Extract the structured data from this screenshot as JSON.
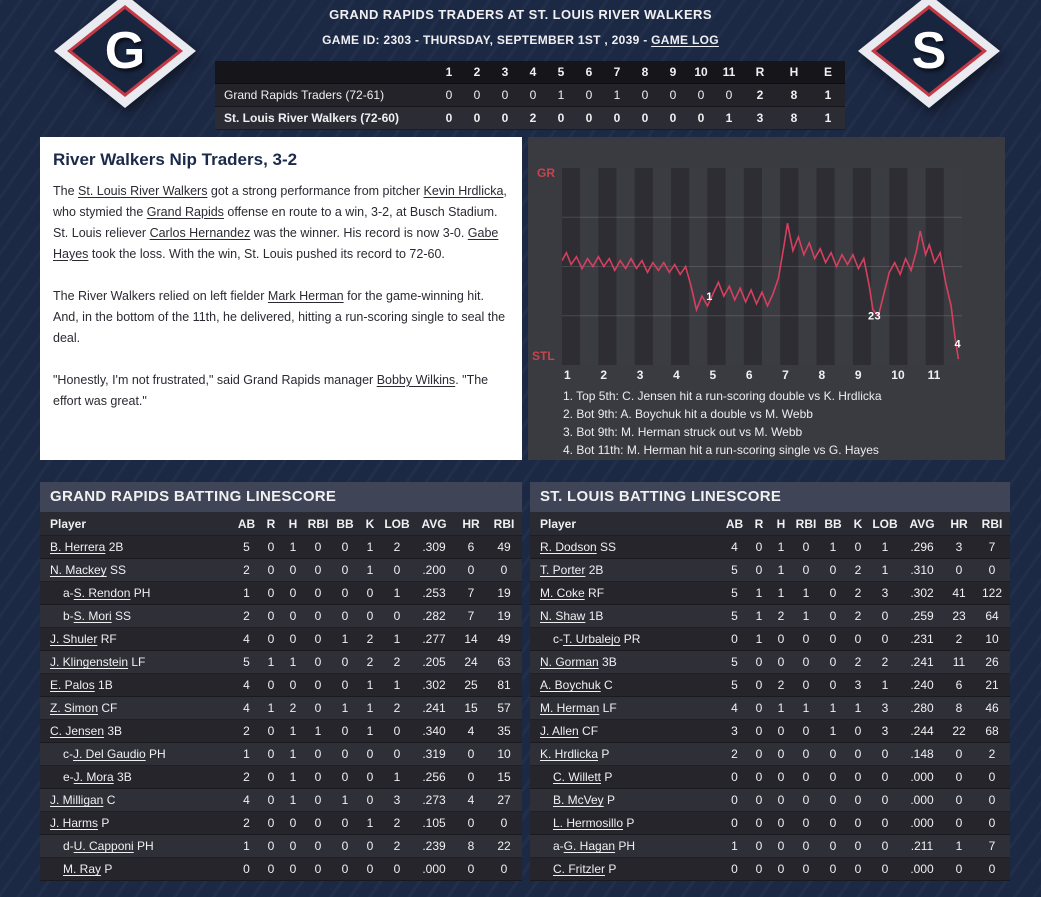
{
  "colors": {
    "page_bg": "#1c2945",
    "panel_bg": "#3a3a41",
    "accent_red": "#c4454e",
    "chart_line": "#d6405f",
    "logo_navy": "#18253f",
    "logo_red": "#c23a46"
  },
  "header": {
    "title": "GRAND RAPIDS TRADERS AT ST. LOUIS RIVER WALKERS",
    "subtitle_prefix": "GAME ID: 2303 - THURSDAY, SEPTEMBER 1ST , 2039 - ",
    "game_log_label": "GAME LOG",
    "away_logo_letter": "G",
    "home_logo_letter": "S"
  },
  "linescore": {
    "innings": [
      "1",
      "2",
      "3",
      "4",
      "5",
      "6",
      "7",
      "8",
      "9",
      "10",
      "11"
    ],
    "rhe_headers": [
      "R",
      "H",
      "E"
    ],
    "rows": [
      {
        "team": "Grand Rapids Traders (72-61)",
        "innings": [
          "0",
          "0",
          "0",
          "0",
          "1",
          "0",
          "1",
          "0",
          "0",
          "0",
          "0"
        ],
        "r": "2",
        "h": "8",
        "e": "1"
      },
      {
        "team": "St. Louis River Walkers (72-60)",
        "innings": [
          "0",
          "0",
          "0",
          "2",
          "0",
          "0",
          "0",
          "0",
          "0",
          "0",
          "1"
        ],
        "r": "3",
        "h": "8",
        "e": "1"
      }
    ]
  },
  "recap": {
    "headline": "River Walkers Nip Traders, 3-2",
    "paragraphs": [
      [
        {
          "t": "The "
        },
        {
          "t": "St. Louis River Walkers",
          "link": true
        },
        {
          "t": " got a strong performance from pitcher "
        },
        {
          "t": "Kevin Hrdlicka",
          "link": true
        },
        {
          "t": ", who stymied the "
        },
        {
          "t": "Grand Rapids",
          "link": true
        },
        {
          "t": " offense en route to a win, 3-2, at Busch Stadium. St. Louis reliever "
        },
        {
          "t": "Carlos Hernandez",
          "link": true
        },
        {
          "t": " was the winner. His record is now 3-0. "
        },
        {
          "t": "Gabe Hayes",
          "link": true
        },
        {
          "t": " took the loss. With the win, St. Louis pushed its record to 72-60."
        }
      ],
      [
        {
          "t": "The River Walkers relied on left fielder "
        },
        {
          "t": "Mark Herman",
          "link": true
        },
        {
          "t": " for the game-winning hit. And, in the bottom of the 11th, he delivered, hitting a run-scoring single to seal the deal."
        }
      ],
      [
        {
          "t": "\"Honestly, I'm not frustrated,\" said Grand Rapids manager "
        },
        {
          "t": "Bobby Wilkins",
          "link": true
        },
        {
          "t": ". \"The effort was great.\""
        }
      ]
    ]
  },
  "chart_data": {
    "type": "line",
    "y_top_label": "GR",
    "y_bottom_label": "STL",
    "x_axis": "inning",
    "y_axis": "win probability % (top = GR, bottom = STL)",
    "ylim": [
      0,
      100
    ],
    "x_ticks": [
      "1",
      "2",
      "3",
      "4",
      "5",
      "6",
      "7",
      "8",
      "9",
      "10",
      "11"
    ],
    "points": [
      [
        1.0,
        53
      ],
      [
        1.12,
        57
      ],
      [
        1.25,
        51
      ],
      [
        1.4,
        55
      ],
      [
        1.55,
        49
      ],
      [
        1.7,
        54
      ],
      [
        1.85,
        50
      ],
      [
        2.0,
        55
      ],
      [
        2.15,
        50
      ],
      [
        2.3,
        54
      ],
      [
        2.45,
        48
      ],
      [
        2.6,
        53
      ],
      [
        2.75,
        49
      ],
      [
        2.9,
        54
      ],
      [
        3.05,
        49
      ],
      [
        3.2,
        53
      ],
      [
        3.35,
        47
      ],
      [
        3.5,
        52
      ],
      [
        3.65,
        48
      ],
      [
        3.8,
        52
      ],
      [
        3.95,
        47
      ],
      [
        4.1,
        51
      ],
      [
        4.25,
        46
      ],
      [
        4.4,
        50
      ],
      [
        4.55,
        40
      ],
      [
        4.7,
        28
      ],
      [
        4.85,
        35
      ],
      [
        5.0,
        30
      ],
      [
        5.15,
        36
      ],
      [
        5.3,
        42
      ],
      [
        5.45,
        35
      ],
      [
        5.6,
        40
      ],
      [
        5.75,
        33
      ],
      [
        5.9,
        39
      ],
      [
        6.05,
        32
      ],
      [
        6.2,
        38
      ],
      [
        6.35,
        31
      ],
      [
        6.5,
        37
      ],
      [
        6.65,
        30
      ],
      [
        6.8,
        36
      ],
      [
        6.95,
        44
      ],
      [
        7.1,
        60
      ],
      [
        7.2,
        72
      ],
      [
        7.35,
        58
      ],
      [
        7.5,
        65
      ],
      [
        7.65,
        56
      ],
      [
        7.8,
        62
      ],
      [
        7.95,
        54
      ],
      [
        8.1,
        59
      ],
      [
        8.25,
        52
      ],
      [
        8.4,
        57
      ],
      [
        8.55,
        50
      ],
      [
        8.7,
        56
      ],
      [
        8.85,
        51
      ],
      [
        9.0,
        56
      ],
      [
        9.15,
        49
      ],
      [
        9.3,
        54
      ],
      [
        9.45,
        40
      ],
      [
        9.55,
        28
      ],
      [
        9.7,
        25
      ],
      [
        9.85,
        36
      ],
      [
        10.0,
        47
      ],
      [
        10.15,
        52
      ],
      [
        10.3,
        46
      ],
      [
        10.45,
        54
      ],
      [
        10.6,
        48
      ],
      [
        10.75,
        58
      ],
      [
        10.85,
        68
      ],
      [
        11.0,
        56
      ],
      [
        11.1,
        61
      ],
      [
        11.25,
        52
      ],
      [
        11.4,
        57
      ],
      [
        11.55,
        42
      ],
      [
        11.7,
        30
      ],
      [
        11.8,
        15
      ],
      [
        11.9,
        3
      ]
    ],
    "markers": [
      {
        "label": "1",
        "x": 5.05,
        "pct": 33
      },
      {
        "label": "2",
        "x": 9.5,
        "pct": 23
      },
      {
        "label": "3",
        "x": 9.68,
        "pct": 23
      },
      {
        "label": "4",
        "x": 11.88,
        "pct": 9
      }
    ],
    "key_plays": [
      "1. Top 5th: C. Jensen hit a run-scoring double vs K. Hrdlicka",
      "2. Bot 9th: A. Boychuk hit a double vs M. Webb",
      "3. Bot 9th: M. Herman struck out vs M. Webb",
      "4. Bot 11th: M. Herman hit a run-scoring single vs G. Hayes"
    ]
  },
  "boxscores": [
    {
      "title": "GRAND RAPIDS BATTING LINESCORE",
      "columns": [
        "Player",
        "AB",
        "R",
        "H",
        "RBI",
        "BB",
        "K",
        "LOB",
        "AVG",
        "HR",
        "RBI"
      ],
      "rows": [
        {
          "prefix": "",
          "name": "B. Herrera",
          "pos": "2B",
          "sub": false,
          "stats": [
            "5",
            "0",
            "1",
            "0",
            "0",
            "1",
            "2",
            ".309",
            "6",
            "49"
          ]
        },
        {
          "prefix": "",
          "name": "N. Mackey",
          "pos": "SS",
          "sub": false,
          "stats": [
            "2",
            "0",
            "0",
            "0",
            "0",
            "1",
            "0",
            ".200",
            "0",
            "0"
          ]
        },
        {
          "prefix": "a-",
          "name": "S. Rendon",
          "pos": "PH",
          "sub": true,
          "stats": [
            "1",
            "0",
            "0",
            "0",
            "0",
            "0",
            "1",
            ".253",
            "7",
            "19"
          ]
        },
        {
          "prefix": "b-",
          "name": "S. Mori",
          "pos": "SS",
          "sub": true,
          "stats": [
            "2",
            "0",
            "0",
            "0",
            "0",
            "0",
            "0",
            ".282",
            "7",
            "19"
          ]
        },
        {
          "prefix": "",
          "name": "J. Shuler",
          "pos": "RF",
          "sub": false,
          "stats": [
            "4",
            "0",
            "0",
            "0",
            "1",
            "2",
            "1",
            ".277",
            "14",
            "49"
          ]
        },
        {
          "prefix": "",
          "name": "J. Klingenstein",
          "pos": "LF",
          "sub": false,
          "stats": [
            "5",
            "1",
            "1",
            "0",
            "0",
            "2",
            "2",
            ".205",
            "24",
            "63"
          ]
        },
        {
          "prefix": "",
          "name": "E. Palos",
          "pos": "1B",
          "sub": false,
          "stats": [
            "4",
            "0",
            "0",
            "0",
            "0",
            "1",
            "1",
            ".302",
            "25",
            "81"
          ]
        },
        {
          "prefix": "",
          "name": "Z. Simon",
          "pos": "CF",
          "sub": false,
          "stats": [
            "4",
            "1",
            "2",
            "0",
            "1",
            "1",
            "2",
            ".241",
            "15",
            "57"
          ]
        },
        {
          "prefix": "",
          "name": "C. Jensen",
          "pos": "3B",
          "sub": false,
          "stats": [
            "2",
            "0",
            "1",
            "1",
            "0",
            "1",
            "0",
            ".340",
            "4",
            "35"
          ]
        },
        {
          "prefix": "c-",
          "name": "J. Del Gaudio",
          "pos": "PH",
          "sub": true,
          "stats": [
            "1",
            "0",
            "1",
            "0",
            "0",
            "0",
            "0",
            ".319",
            "0",
            "10"
          ]
        },
        {
          "prefix": "e-",
          "name": "J. Mora",
          "pos": "3B",
          "sub": true,
          "stats": [
            "2",
            "0",
            "1",
            "0",
            "0",
            "0",
            "1",
            ".256",
            "0",
            "15"
          ]
        },
        {
          "prefix": "",
          "name": "J. Milligan",
          "pos": "C",
          "sub": false,
          "stats": [
            "4",
            "0",
            "1",
            "0",
            "1",
            "0",
            "3",
            ".273",
            "4",
            "27"
          ]
        },
        {
          "prefix": "",
          "name": "J. Harms",
          "pos": "P",
          "sub": false,
          "stats": [
            "2",
            "0",
            "0",
            "0",
            "0",
            "1",
            "2",
            ".105",
            "0",
            "0"
          ]
        },
        {
          "prefix": "d-",
          "name": "U. Capponi",
          "pos": "PH",
          "sub": true,
          "stats": [
            "1",
            "0",
            "0",
            "0",
            "0",
            "0",
            "2",
            ".239",
            "8",
            "22"
          ]
        },
        {
          "prefix": "",
          "name": "M. Ray",
          "pos": "P",
          "sub": true,
          "stats": [
            "0",
            "0",
            "0",
            "0",
            "0",
            "0",
            "0",
            ".000",
            "0",
            "0"
          ]
        }
      ]
    },
    {
      "title": "ST. LOUIS BATTING LINESCORE",
      "columns": [
        "Player",
        "AB",
        "R",
        "H",
        "RBI",
        "BB",
        "K",
        "LOB",
        "AVG",
        "HR",
        "RBI"
      ],
      "rows": [
        {
          "prefix": "",
          "name": "R. Dodson",
          "pos": "SS",
          "sub": false,
          "stats": [
            "4",
            "0",
            "1",
            "0",
            "1",
            "0",
            "1",
            ".296",
            "3",
            "7"
          ]
        },
        {
          "prefix": "",
          "name": "T. Porter",
          "pos": "2B",
          "sub": false,
          "stats": [
            "5",
            "0",
            "1",
            "0",
            "0",
            "2",
            "1",
            ".310",
            "0",
            "0"
          ]
        },
        {
          "prefix": "",
          "name": "M. Coke",
          "pos": "RF",
          "sub": false,
          "stats": [
            "5",
            "1",
            "1",
            "1",
            "0",
            "2",
            "3",
            ".302",
            "41",
            "122"
          ]
        },
        {
          "prefix": "",
          "name": "N. Shaw",
          "pos": "1B",
          "sub": false,
          "stats": [
            "5",
            "1",
            "2",
            "1",
            "0",
            "2",
            "0",
            ".259",
            "23",
            "64"
          ]
        },
        {
          "prefix": "c-",
          "name": "T. Urbalejo",
          "pos": "PR",
          "sub": true,
          "stats": [
            "0",
            "1",
            "0",
            "0",
            "0",
            "0",
            "0",
            ".231",
            "2",
            "10"
          ]
        },
        {
          "prefix": "",
          "name": "N. Gorman",
          "pos": "3B",
          "sub": false,
          "stats": [
            "5",
            "0",
            "0",
            "0",
            "0",
            "2",
            "2",
            ".241",
            "11",
            "26"
          ]
        },
        {
          "prefix": "",
          "name": "A. Boychuk",
          "pos": "C",
          "sub": false,
          "stats": [
            "5",
            "0",
            "2",
            "0",
            "0",
            "3",
            "1",
            ".240",
            "6",
            "21"
          ]
        },
        {
          "prefix": "",
          "name": "M. Herman",
          "pos": "LF",
          "sub": false,
          "stats": [
            "4",
            "0",
            "1",
            "1",
            "1",
            "1",
            "3",
            ".280",
            "8",
            "46"
          ]
        },
        {
          "prefix": "",
          "name": "J. Allen",
          "pos": "CF",
          "sub": false,
          "stats": [
            "3",
            "0",
            "0",
            "0",
            "1",
            "0",
            "3",
            ".244",
            "22",
            "68"
          ]
        },
        {
          "prefix": "",
          "name": "K. Hrdlicka",
          "pos": "P",
          "sub": false,
          "stats": [
            "2",
            "0",
            "0",
            "0",
            "0",
            "0",
            "0",
            ".148",
            "0",
            "2"
          ]
        },
        {
          "prefix": "",
          "name": "C. Willett",
          "pos": "P",
          "sub": true,
          "stats": [
            "0",
            "0",
            "0",
            "0",
            "0",
            "0",
            "0",
            ".000",
            "0",
            "0"
          ]
        },
        {
          "prefix": "",
          "name": "B. McVey",
          "pos": "P",
          "sub": true,
          "stats": [
            "0",
            "0",
            "0",
            "0",
            "0",
            "0",
            "0",
            ".000",
            "0",
            "0"
          ]
        },
        {
          "prefix": "",
          "name": "L. Hermosillo",
          "pos": "P",
          "sub": true,
          "stats": [
            "0",
            "0",
            "0",
            "0",
            "0",
            "0",
            "0",
            ".000",
            "0",
            "0"
          ]
        },
        {
          "prefix": "a-",
          "name": "G. Hagan",
          "pos": "PH",
          "sub": true,
          "stats": [
            "1",
            "0",
            "0",
            "0",
            "0",
            "0",
            "0",
            ".211",
            "1",
            "7"
          ]
        },
        {
          "prefix": "",
          "name": "C. Fritzler",
          "pos": "P",
          "sub": true,
          "stats": [
            "0",
            "0",
            "0",
            "0",
            "0",
            "0",
            "0",
            ".000",
            "0",
            "0"
          ]
        }
      ]
    }
  ]
}
